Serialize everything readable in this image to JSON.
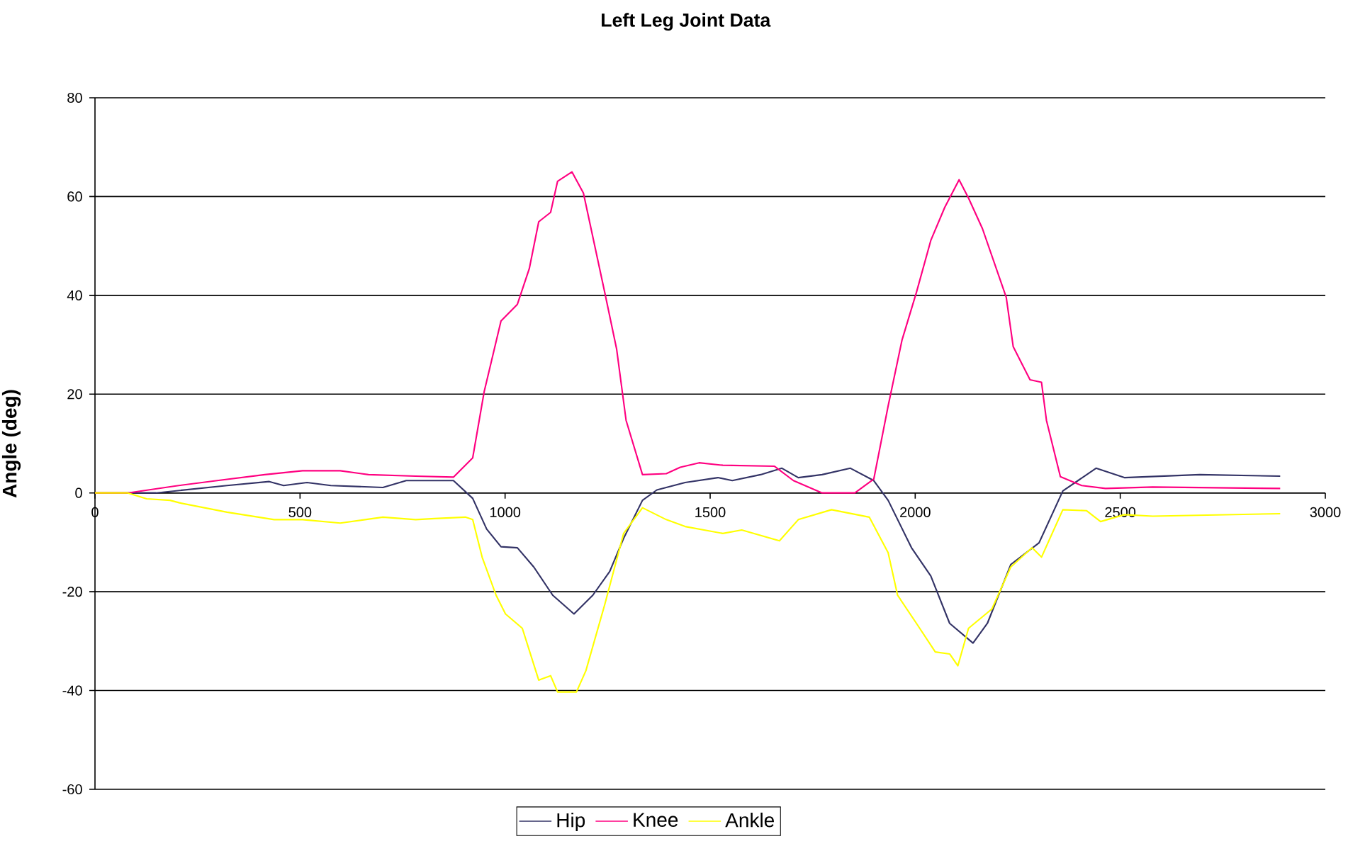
{
  "chart_data": {
    "type": "line",
    "title": "Left Leg Joint Data",
    "ylabel": "Angle (deg)",
    "xlim": [
      0,
      3000
    ],
    "xticks": [
      0,
      500,
      1000,
      1500,
      2000,
      2500,
      3000
    ],
    "ylim": [
      -60,
      80
    ],
    "yticks": [
      -60,
      -40,
      -20,
      0,
      20,
      40,
      60,
      80
    ],
    "grid": "y",
    "legend": "bottom",
    "series": [
      {
        "name": "Hip",
        "color": "#333366",
        "x": [
          0,
          149,
          322,
          425,
          460,
          517,
          575,
          702,
          759,
          874,
          921,
          955,
          990,
          1030,
          1070,
          1116,
          1168,
          1214,
          1255,
          1289,
          1335,
          1370,
          1439,
          1519,
          1554,
          1623,
          1675,
          1715,
          1773,
          1842,
          1899,
          1934,
          1991,
          2038,
          2084,
          2141,
          2176,
          2233,
          2302,
          2360,
          2441,
          2510,
          2694,
          2890
        ],
        "values": [
          0,
          0,
          1.5,
          2.3,
          1.5,
          2.1,
          1.5,
          1.1,
          2.5,
          2.5,
          -1.1,
          -7.3,
          -10.9,
          -11.1,
          -15,
          -20.7,
          -24.5,
          -20.7,
          -15.9,
          -9.2,
          -1.5,
          0.6,
          2.1,
          3.1,
          2.5,
          3.7,
          5,
          3.1,
          3.7,
          5,
          2.5,
          -1.5,
          -11.1,
          -16.8,
          -26.4,
          -30.4,
          -26.4,
          -14.5,
          -10.1,
          0.4,
          5,
          3.1,
          3.7,
          3.4
        ]
      },
      {
        "name": "Knee",
        "color": "#ff0080",
        "x": [
          0,
          80,
          195,
          298,
          414,
          506,
          598,
          667,
          782,
          874,
          921,
          949,
          990,
          1030,
          1059,
          1082,
          1111,
          1128,
          1163,
          1191,
          1243,
          1272,
          1295,
          1335,
          1393,
          1427,
          1473,
          1531,
          1657,
          1703,
          1773,
          1853,
          1899,
          1934,
          1968,
          2003,
          2038,
          2072,
          2107,
          2130,
          2164,
          2222,
          2239,
          2280,
          2308,
          2320,
          2354,
          2406,
          2464,
          2579,
          2890
        ],
        "values": [
          0,
          0,
          1.4,
          2.5,
          3.7,
          4.5,
          4.5,
          3.7,
          3.4,
          3.2,
          7.1,
          20.5,
          34.8,
          38.2,
          45.4,
          54.9,
          56.8,
          63.1,
          65,
          60.7,
          40.6,
          29.1,
          14.7,
          3.7,
          3.9,
          5.2,
          6.1,
          5.6,
          5.4,
          2.5,
          0,
          0,
          2.8,
          17.6,
          31,
          40.6,
          51.1,
          57.8,
          63.4,
          59.7,
          53.5,
          39.6,
          29.6,
          22.9,
          22.4,
          14.7,
          3.3,
          1.5,
          0.9,
          1.2,
          0.9
        ]
      },
      {
        "name": "Ankle",
        "color": "#ffff00",
        "x": [
          0,
          80,
          126,
          183,
          206,
          322,
          437,
          506,
          598,
          702,
          782,
          828,
          903,
          921,
          944,
          978,
          1001,
          1042,
          1082,
          1111,
          1128,
          1174,
          1197,
          1243,
          1289,
          1335,
          1393,
          1439,
          1531,
          1577,
          1669,
          1715,
          1796,
          1888,
          1934,
          1957,
          2003,
          2049,
          2084,
          2104,
          2130,
          2187,
          2233,
          2285,
          2308,
          2360,
          2418,
          2452,
          2510,
          2579,
          2890
        ],
        "values": [
          0,
          0,
          -1.2,
          -1.5,
          -2,
          -3.9,
          -5.4,
          -5.4,
          -6.1,
          -4.9,
          -5.4,
          -5.2,
          -4.9,
          -5.4,
          -13,
          -20.7,
          -24.5,
          -27.4,
          -37.9,
          -37,
          -40.3,
          -40.3,
          -36,
          -22.6,
          -8.2,
          -3,
          -5.4,
          -6.8,
          -8.2,
          -7.5,
          -9.7,
          -5.4,
          -3.4,
          -4.9,
          -12.1,
          -20.7,
          -26.4,
          -32.2,
          -32.6,
          -35,
          -27.4,
          -23.5,
          -15,
          -11.1,
          -13,
          -3.4,
          -3.6,
          -5.8,
          -4.4,
          -4.7,
          -4.2
        ]
      }
    ]
  }
}
